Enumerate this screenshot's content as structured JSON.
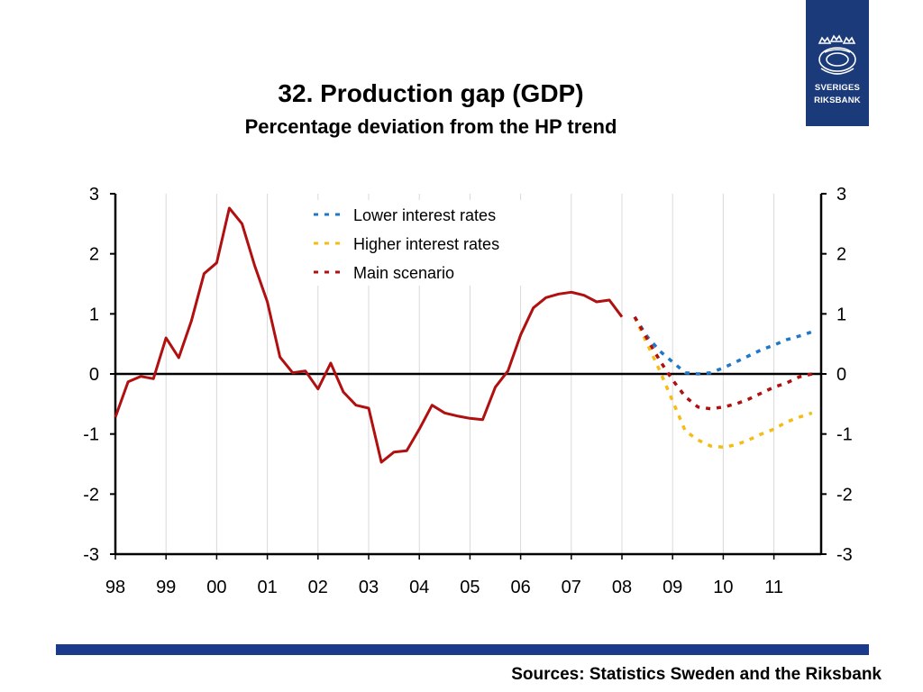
{
  "logo": {
    "line1": "SVERIGES",
    "line2": "RIKSBANK"
  },
  "title": "32. Production gap (GDP)",
  "subtitle": "Percentage deviation from the HP trend",
  "source": "Sources: Statistics Sweden and the Riksbank",
  "colors": {
    "main": "#b01010",
    "lower": "#1e78c8",
    "higher": "#f5bc16",
    "axis": "#000000",
    "grid": "#d9d9d9",
    "bar": "#1b3a8c",
    "logo_bg": "#1b3a7a"
  },
  "chart_data": {
    "type": "line",
    "title": "32. Production gap (GDP)",
    "subtitle": "Percentage deviation from the HP trend",
    "ylim": [
      -3,
      3
    ],
    "y_ticks": [
      "-3",
      "-2",
      "-1",
      "0",
      "1",
      "2",
      "3"
    ],
    "y_ticks_right": [
      "-3",
      "-2",
      "-1",
      "0",
      "1",
      "2",
      "3"
    ],
    "xlim": [
      1998,
      2012
    ],
    "x_ticks": [
      "98",
      "99",
      "00",
      "01",
      "02",
      "03",
      "04",
      "05",
      "06",
      "07",
      "08",
      "09",
      "10",
      "11"
    ],
    "grid": "vertical",
    "legend_position": "top-center",
    "series": [
      {
        "name": "Lower interest rates",
        "style": "dashed",
        "color": "#1e78c8",
        "points": [
          [
            2008.25,
            0.95
          ],
          [
            2008.5,
            0.62
          ],
          [
            2008.75,
            0.38
          ],
          [
            2009.0,
            0.2
          ],
          [
            2009.25,
            0.02
          ],
          [
            2009.5,
            0.0
          ],
          [
            2009.75,
            0.02
          ],
          [
            2010.0,
            0.1
          ],
          [
            2010.25,
            0.2
          ],
          [
            2010.5,
            0.3
          ],
          [
            2010.75,
            0.4
          ],
          [
            2011.0,
            0.48
          ],
          [
            2011.25,
            0.57
          ],
          [
            2011.5,
            0.63
          ],
          [
            2011.75,
            0.7
          ]
        ]
      },
      {
        "name": "Higher interest rates",
        "style": "dashed",
        "color": "#f5bc16",
        "points": [
          [
            2008.25,
            0.95
          ],
          [
            2008.5,
            0.5
          ],
          [
            2008.75,
            0.05
          ],
          [
            2009.0,
            -0.45
          ],
          [
            2009.25,
            -0.95
          ],
          [
            2009.5,
            -1.1
          ],
          [
            2009.75,
            -1.2
          ],
          [
            2010.0,
            -1.22
          ],
          [
            2010.25,
            -1.18
          ],
          [
            2010.5,
            -1.1
          ],
          [
            2010.75,
            -1.0
          ],
          [
            2011.0,
            -0.92
          ],
          [
            2011.25,
            -0.8
          ],
          [
            2011.5,
            -0.72
          ],
          [
            2011.75,
            -0.65
          ]
        ]
      },
      {
        "name": "Main scenario",
        "style": "dashed",
        "color": "#b01010",
        "points": [
          [
            2008.25,
            0.95
          ],
          [
            2008.5,
            0.58
          ],
          [
            2008.75,
            0.22
          ],
          [
            2009.0,
            -0.1
          ],
          [
            2009.25,
            -0.38
          ],
          [
            2009.5,
            -0.55
          ],
          [
            2009.75,
            -0.58
          ],
          [
            2010.0,
            -0.55
          ],
          [
            2010.25,
            -0.5
          ],
          [
            2010.5,
            -0.42
          ],
          [
            2010.75,
            -0.32
          ],
          [
            2011.0,
            -0.22
          ],
          [
            2011.25,
            -0.15
          ],
          [
            2011.5,
            -0.05
          ],
          [
            2011.75,
            0.0
          ]
        ]
      },
      {
        "name": "",
        "style": "solid",
        "color": "#b01010",
        "points": [
          [
            1998.0,
            -0.72
          ],
          [
            1998.25,
            -0.13
          ],
          [
            1998.5,
            -0.04
          ],
          [
            1998.75,
            -0.08
          ],
          [
            1999.0,
            0.6
          ],
          [
            1999.25,
            0.27
          ],
          [
            1999.5,
            0.88
          ],
          [
            1999.75,
            1.67
          ],
          [
            2000.0,
            1.85
          ],
          [
            2000.25,
            2.76
          ],
          [
            2000.5,
            2.5
          ],
          [
            2000.75,
            1.8
          ],
          [
            2001.0,
            1.2
          ],
          [
            2001.25,
            0.28
          ],
          [
            2001.5,
            0.02
          ],
          [
            2001.75,
            0.05
          ],
          [
            2002.0,
            -0.25
          ],
          [
            2002.25,
            0.18
          ],
          [
            2002.5,
            -0.3
          ],
          [
            2002.75,
            -0.52
          ],
          [
            2003.0,
            -0.57
          ],
          [
            2003.25,
            -1.47
          ],
          [
            2003.5,
            -1.3
          ],
          [
            2003.75,
            -1.28
          ],
          [
            2004.0,
            -0.92
          ],
          [
            2004.25,
            -0.52
          ],
          [
            2004.5,
            -0.65
          ],
          [
            2004.75,
            -0.7
          ],
          [
            2005.0,
            -0.74
          ],
          [
            2005.25,
            -0.76
          ],
          [
            2005.5,
            -0.22
          ],
          [
            2005.75,
            0.05
          ],
          [
            2006.0,
            0.65
          ],
          [
            2006.25,
            1.1
          ],
          [
            2006.5,
            1.27
          ],
          [
            2006.75,
            1.33
          ],
          [
            2007.0,
            1.36
          ],
          [
            2007.25,
            1.31
          ],
          [
            2007.5,
            1.2
          ],
          [
            2007.75,
            1.23
          ],
          [
            2008.0,
            0.95
          ]
        ]
      }
    ]
  }
}
